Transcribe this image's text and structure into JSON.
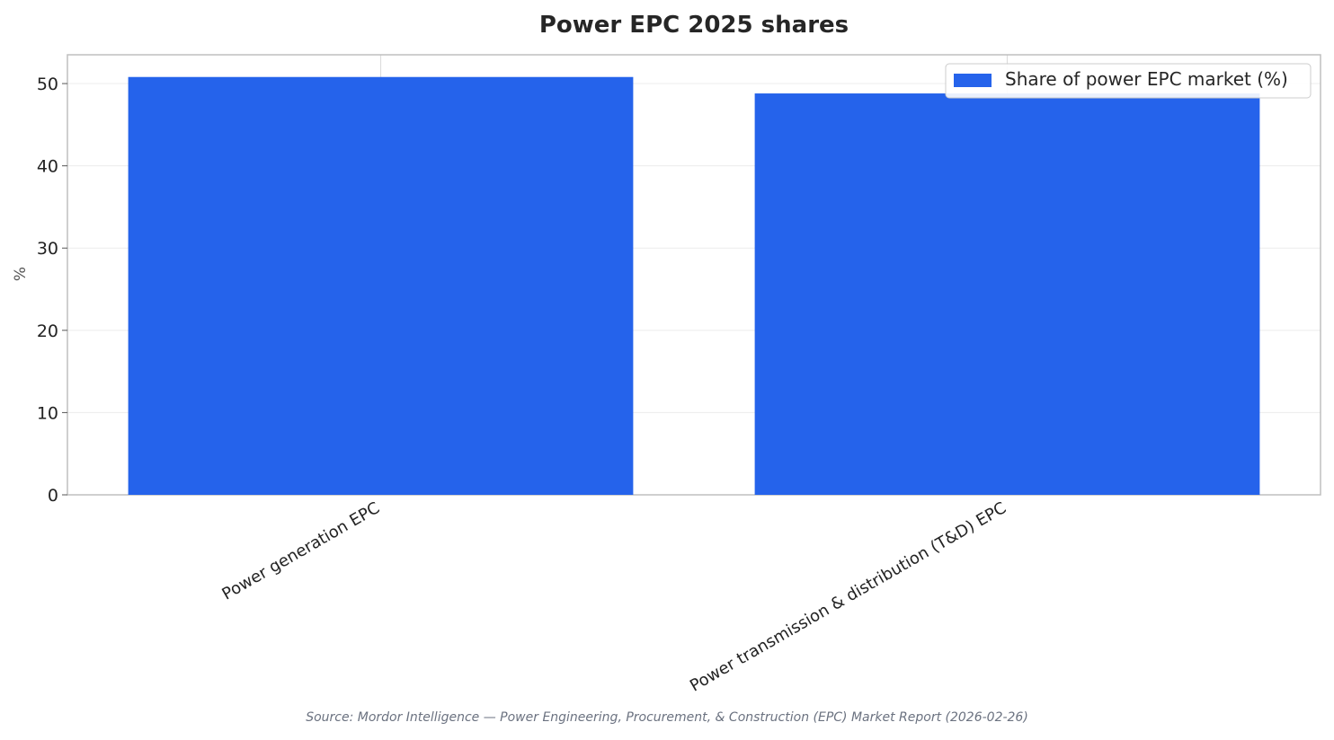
{
  "chart_data": {
    "type": "bar",
    "title": "Power EPC 2025 shares",
    "ylabel": "%",
    "xlabel": "",
    "ylim": [
      0,
      53.5
    ],
    "yticks": [
      0,
      10,
      20,
      30,
      40,
      50
    ],
    "grid": true,
    "legend_position": "top-right",
    "categories": [
      "Power generation EPC",
      "Power transmission & distribution (T&D) EPC"
    ],
    "series": [
      {
        "name": "Share of power EPC market (%)",
        "color": "#2563eb",
        "values": [
          50.8,
          48.8
        ]
      }
    ]
  },
  "source": "Source: Mordor Intelligence — Power Engineering, Procurement, & Construction (EPC) Market Report (2026-02-26)"
}
